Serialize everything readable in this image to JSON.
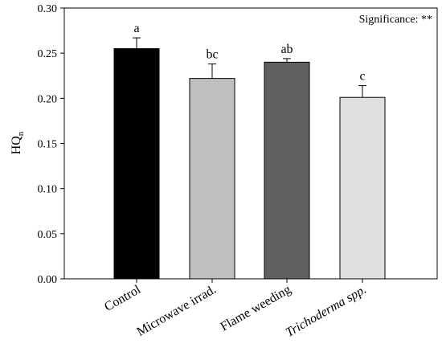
{
  "chart_data": {
    "type": "bar",
    "title": "",
    "xlabel": "",
    "ylabel": "HQ",
    "ylabel_subscript": "n",
    "ylim": [
      0,
      0.3
    ],
    "yticks": [
      "0.00",
      "0.05",
      "0.10",
      "0.15",
      "0.20",
      "0.25",
      "0.30"
    ],
    "grid": false,
    "significance": "Significance: **",
    "categories": [
      "Control",
      "Microwave irrad.",
      "Flame weeding",
      "Trichoderma spp."
    ],
    "values": [
      0.255,
      0.222,
      0.24,
      0.201
    ],
    "errors": [
      0.012,
      0.016,
      0.004,
      0.013
    ],
    "letters": [
      "a",
      "bc",
      "ab",
      "c"
    ],
    "italic_categories": [
      false,
      false,
      false,
      true
    ],
    "colors": [
      "#000000",
      "#c0c0c0",
      "#606060",
      "#e0e0e0"
    ]
  }
}
